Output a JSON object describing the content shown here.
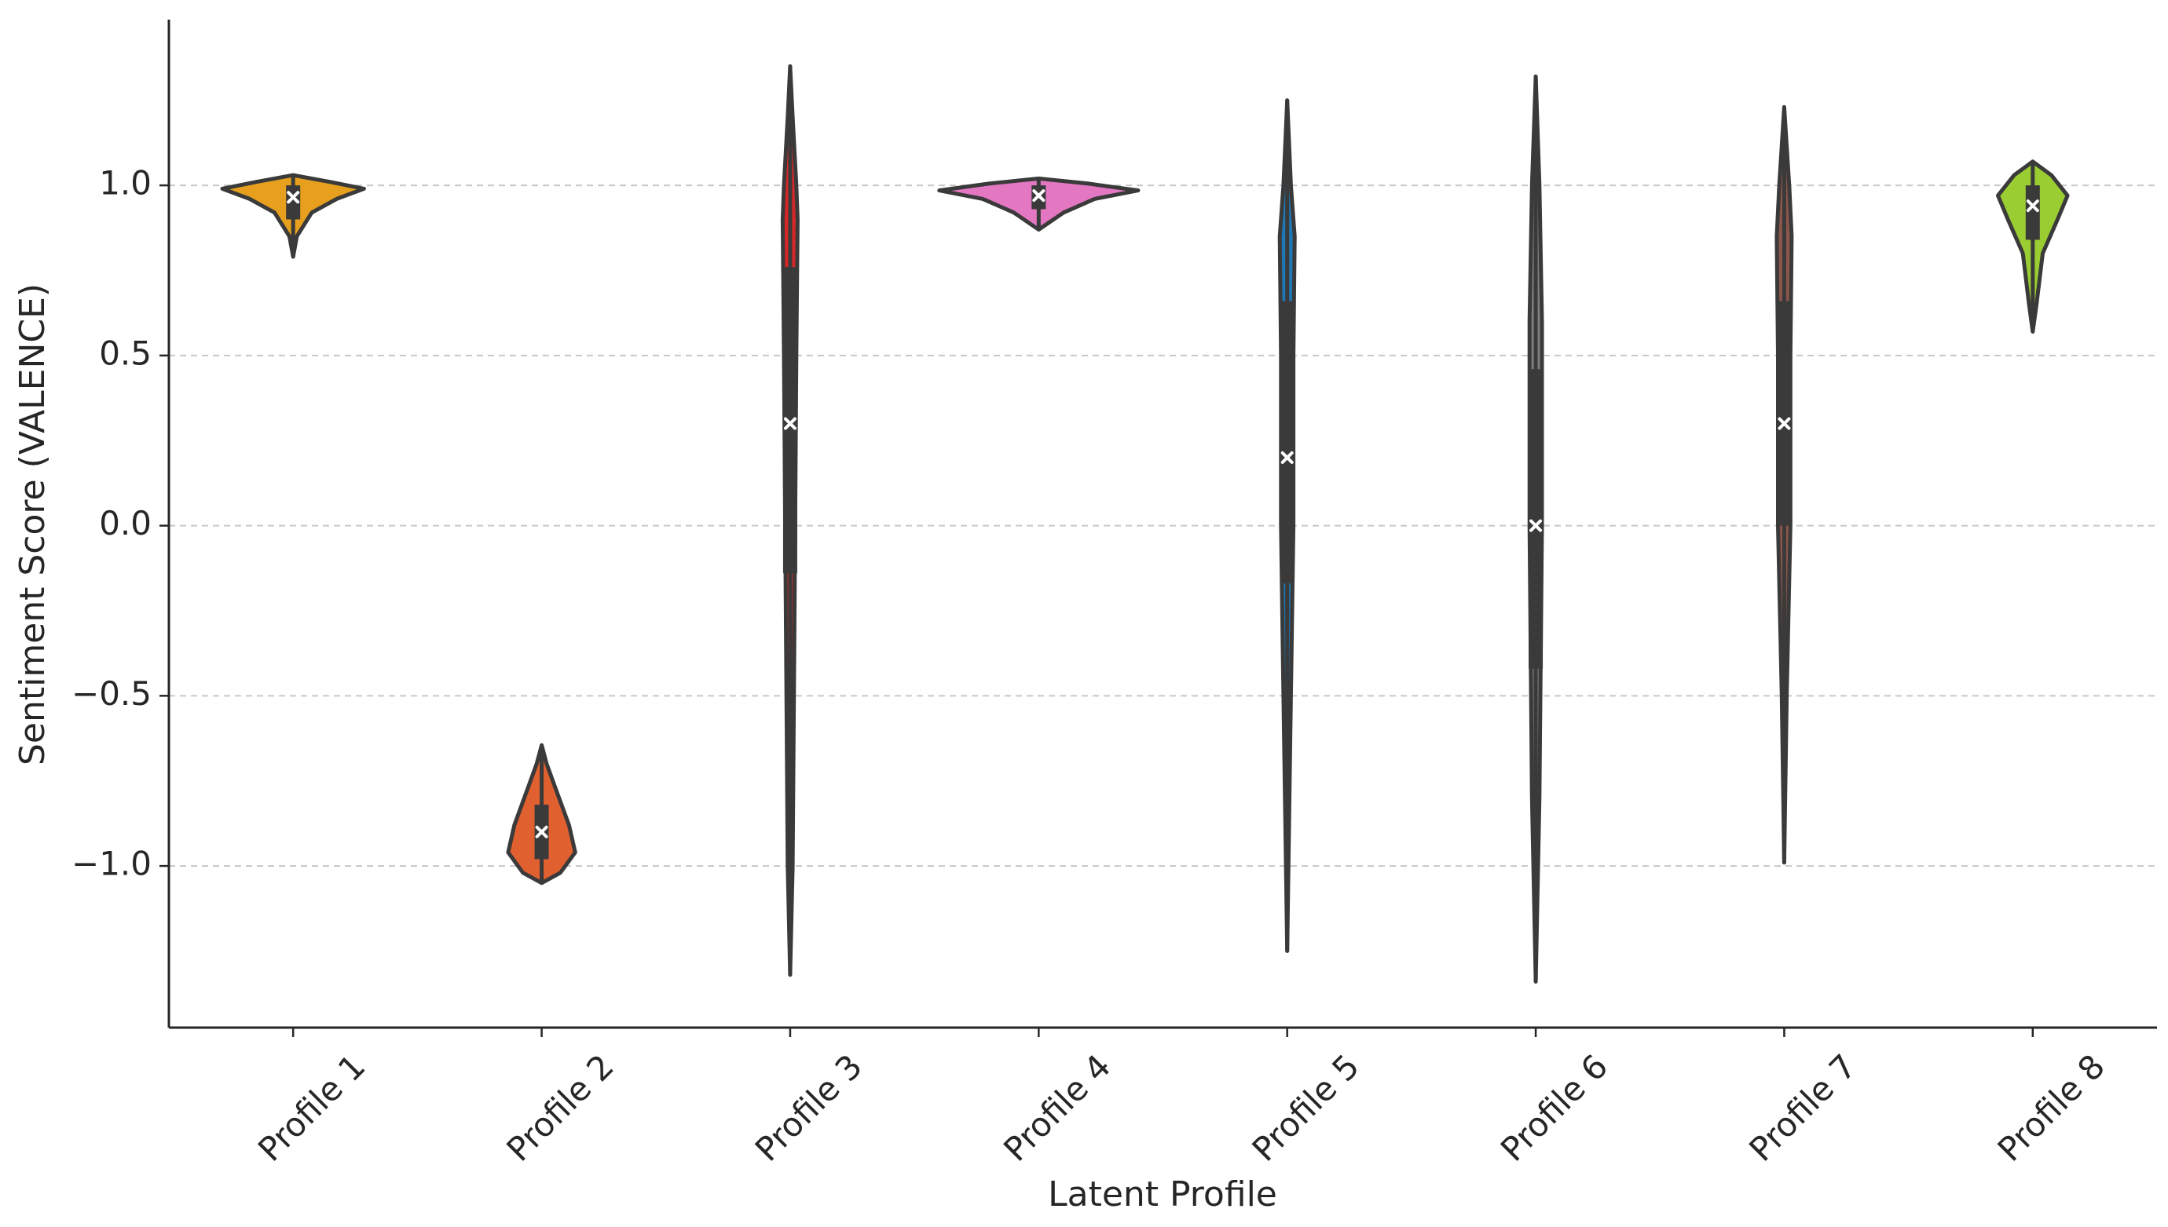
{
  "chart_data": {
    "type": "violin",
    "x_label": "Latent Profile",
    "y_label": "Sentiment Score (VALENCE)",
    "categories": [
      "Profile 1",
      "Profile 2",
      "Profile 3",
      "Profile 4",
      "Profile 5",
      "Profile 6",
      "Profile 7",
      "Profile 8"
    ],
    "colors": [
      "#e6a01e",
      "#e06030",
      "#d62728",
      "#e377c2",
      "#1f77b4",
      "#7f7f7f",
      "#8c564b",
      "#9acd32"
    ],
    "min": [
      0.79,
      -1.05,
      -1.32,
      0.87,
      -1.25,
      -1.34,
      -0.99,
      0.57
    ],
    "q1": [
      0.9,
      -0.98,
      -0.14,
      0.93,
      -0.17,
      -0.42,
      0.0,
      0.84
    ],
    "mean": [
      0.965,
      -0.9,
      0.3,
      0.97,
      0.2,
      0.0,
      0.3,
      0.94
    ],
    "q3": [
      1.0,
      -0.82,
      0.76,
      1.0,
      0.66,
      0.46,
      0.66,
      1.0
    ],
    "max": [
      1.03,
      -0.645,
      1.35,
      1.02,
      1.25,
      1.32,
      1.23,
      1.07
    ],
    "shapes": [
      [
        [
          0.79,
          0
        ],
        [
          0.85,
          0.03
        ],
        [
          0.92,
          0.15
        ],
        [
          0.96,
          0.35
        ],
        [
          0.99,
          0.57
        ],
        [
          1.01,
          0.3
        ],
        [
          1.03,
          0
        ]
      ],
      [
        [
          -1.05,
          0
        ],
        [
          -1.02,
          0.15
        ],
        [
          -0.96,
          0.27
        ],
        [
          -0.88,
          0.22
        ],
        [
          -0.78,
          0.12
        ],
        [
          -0.7,
          0.04
        ],
        [
          -0.645,
          0
        ]
      ],
      [
        [
          -1.32,
          0
        ],
        [
          -1.0,
          0.02
        ],
        [
          0,
          0.04
        ],
        [
          0.5,
          0.05
        ],
        [
          0.9,
          0.06
        ],
        [
          1.0,
          0.05
        ],
        [
          1.2,
          0.02
        ],
        [
          1.35,
          0
        ]
      ],
      [
        [
          0.87,
          0
        ],
        [
          0.92,
          0.2
        ],
        [
          0.96,
          0.45
        ],
        [
          0.985,
          0.8
        ],
        [
          1.005,
          0.4
        ],
        [
          1.02,
          0
        ]
      ],
      [
        [
          -1.25,
          0
        ],
        [
          -0.5,
          0.03
        ],
        [
          0,
          0.05
        ],
        [
          0.5,
          0.05
        ],
        [
          0.85,
          0.06
        ],
        [
          1.0,
          0.03
        ],
        [
          1.25,
          0
        ]
      ],
      [
        [
          -1.34,
          0
        ],
        [
          -0.8,
          0.03
        ],
        [
          0,
          0.05
        ],
        [
          0.6,
          0.05
        ],
        [
          1.0,
          0.03
        ],
        [
          1.32,
          0
        ]
      ],
      [
        [
          -0.99,
          0
        ],
        [
          -0.5,
          0.02
        ],
        [
          0,
          0.05
        ],
        [
          0.5,
          0.05
        ],
        [
          0.85,
          0.06
        ],
        [
          1.0,
          0.04
        ],
        [
          1.23,
          0
        ]
      ],
      [
        [
          0.57,
          0
        ],
        [
          0.65,
          0.03
        ],
        [
          0.8,
          0.08
        ],
        [
          0.9,
          0.2
        ],
        [
          0.97,
          0.28
        ],
        [
          1.03,
          0.15
        ],
        [
          1.07,
          0
        ]
      ]
    ],
    "ylim": [
      -1.475,
      1.487
    ],
    "yticks": [
      {
        "value": -1.0,
        "label": "−1.0"
      },
      {
        "value": -0.5,
        "label": "−0.5"
      },
      {
        "value": 0.0,
        "label": "0.0"
      },
      0.5,
      {
        "value": 1.0,
        "label": "1.0"
      }
    ],
    "grid": true
  }
}
